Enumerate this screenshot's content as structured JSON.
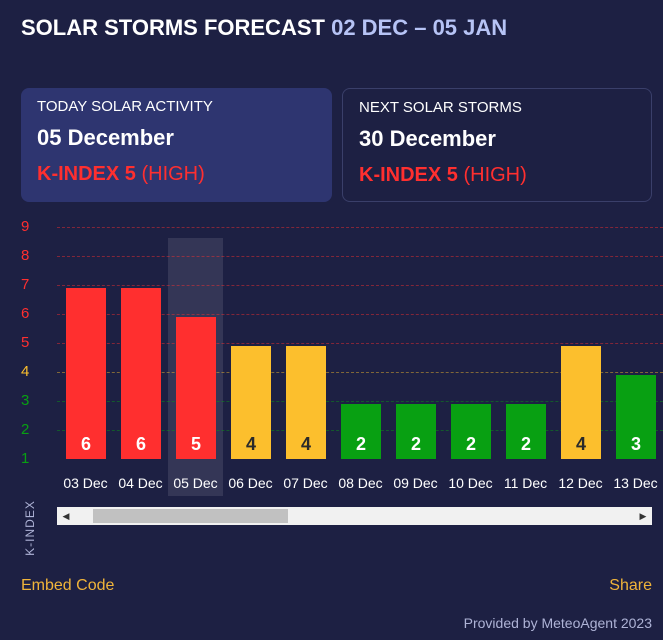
{
  "title": {
    "main": "SOLAR STORMS FORECAST",
    "range": "02 DEC – 05 JAN"
  },
  "today_card": {
    "label": "TODAY SOLAR ACTIVITY",
    "date": "05 December",
    "kindex": "K-INDEX 5",
    "level": "(HIGH)"
  },
  "next_card": {
    "label": "NEXT SOLAR STORMS",
    "date": "30 December",
    "kindex": "K-INDEX 5",
    "level": "(HIGH)"
  },
  "colors": {
    "high": "#ff2f2f",
    "moderate": "#fcbf2d",
    "low": "#08a012",
    "accent": "#f0b43a",
    "background": "#1d2043"
  },
  "chart_data": {
    "type": "bar",
    "ylabel": "K-INDEX",
    "ylim": [
      1,
      9
    ],
    "yticks": [
      "9",
      "8",
      "7",
      "6",
      "5",
      "4",
      "3",
      "2",
      "1"
    ],
    "highlighted_category": "05 Dec",
    "categories": [
      "03 Dec",
      "04 Dec",
      "05 Dec",
      "06 Dec",
      "07 Dec",
      "08 Dec",
      "09 Dec",
      "10 Dec",
      "11 Dec",
      "12 Dec",
      "13 Dec"
    ],
    "values": [
      6,
      6,
      5,
      4,
      4,
      2,
      2,
      2,
      2,
      4,
      3
    ]
  },
  "footer": {
    "embed": "Embed Code",
    "share": "Share",
    "provided": "Provided by MeteoAgent 2023"
  },
  "scrollbar": {
    "left_icon": "arrow-left-icon",
    "right_icon": "arrow-right-icon"
  }
}
